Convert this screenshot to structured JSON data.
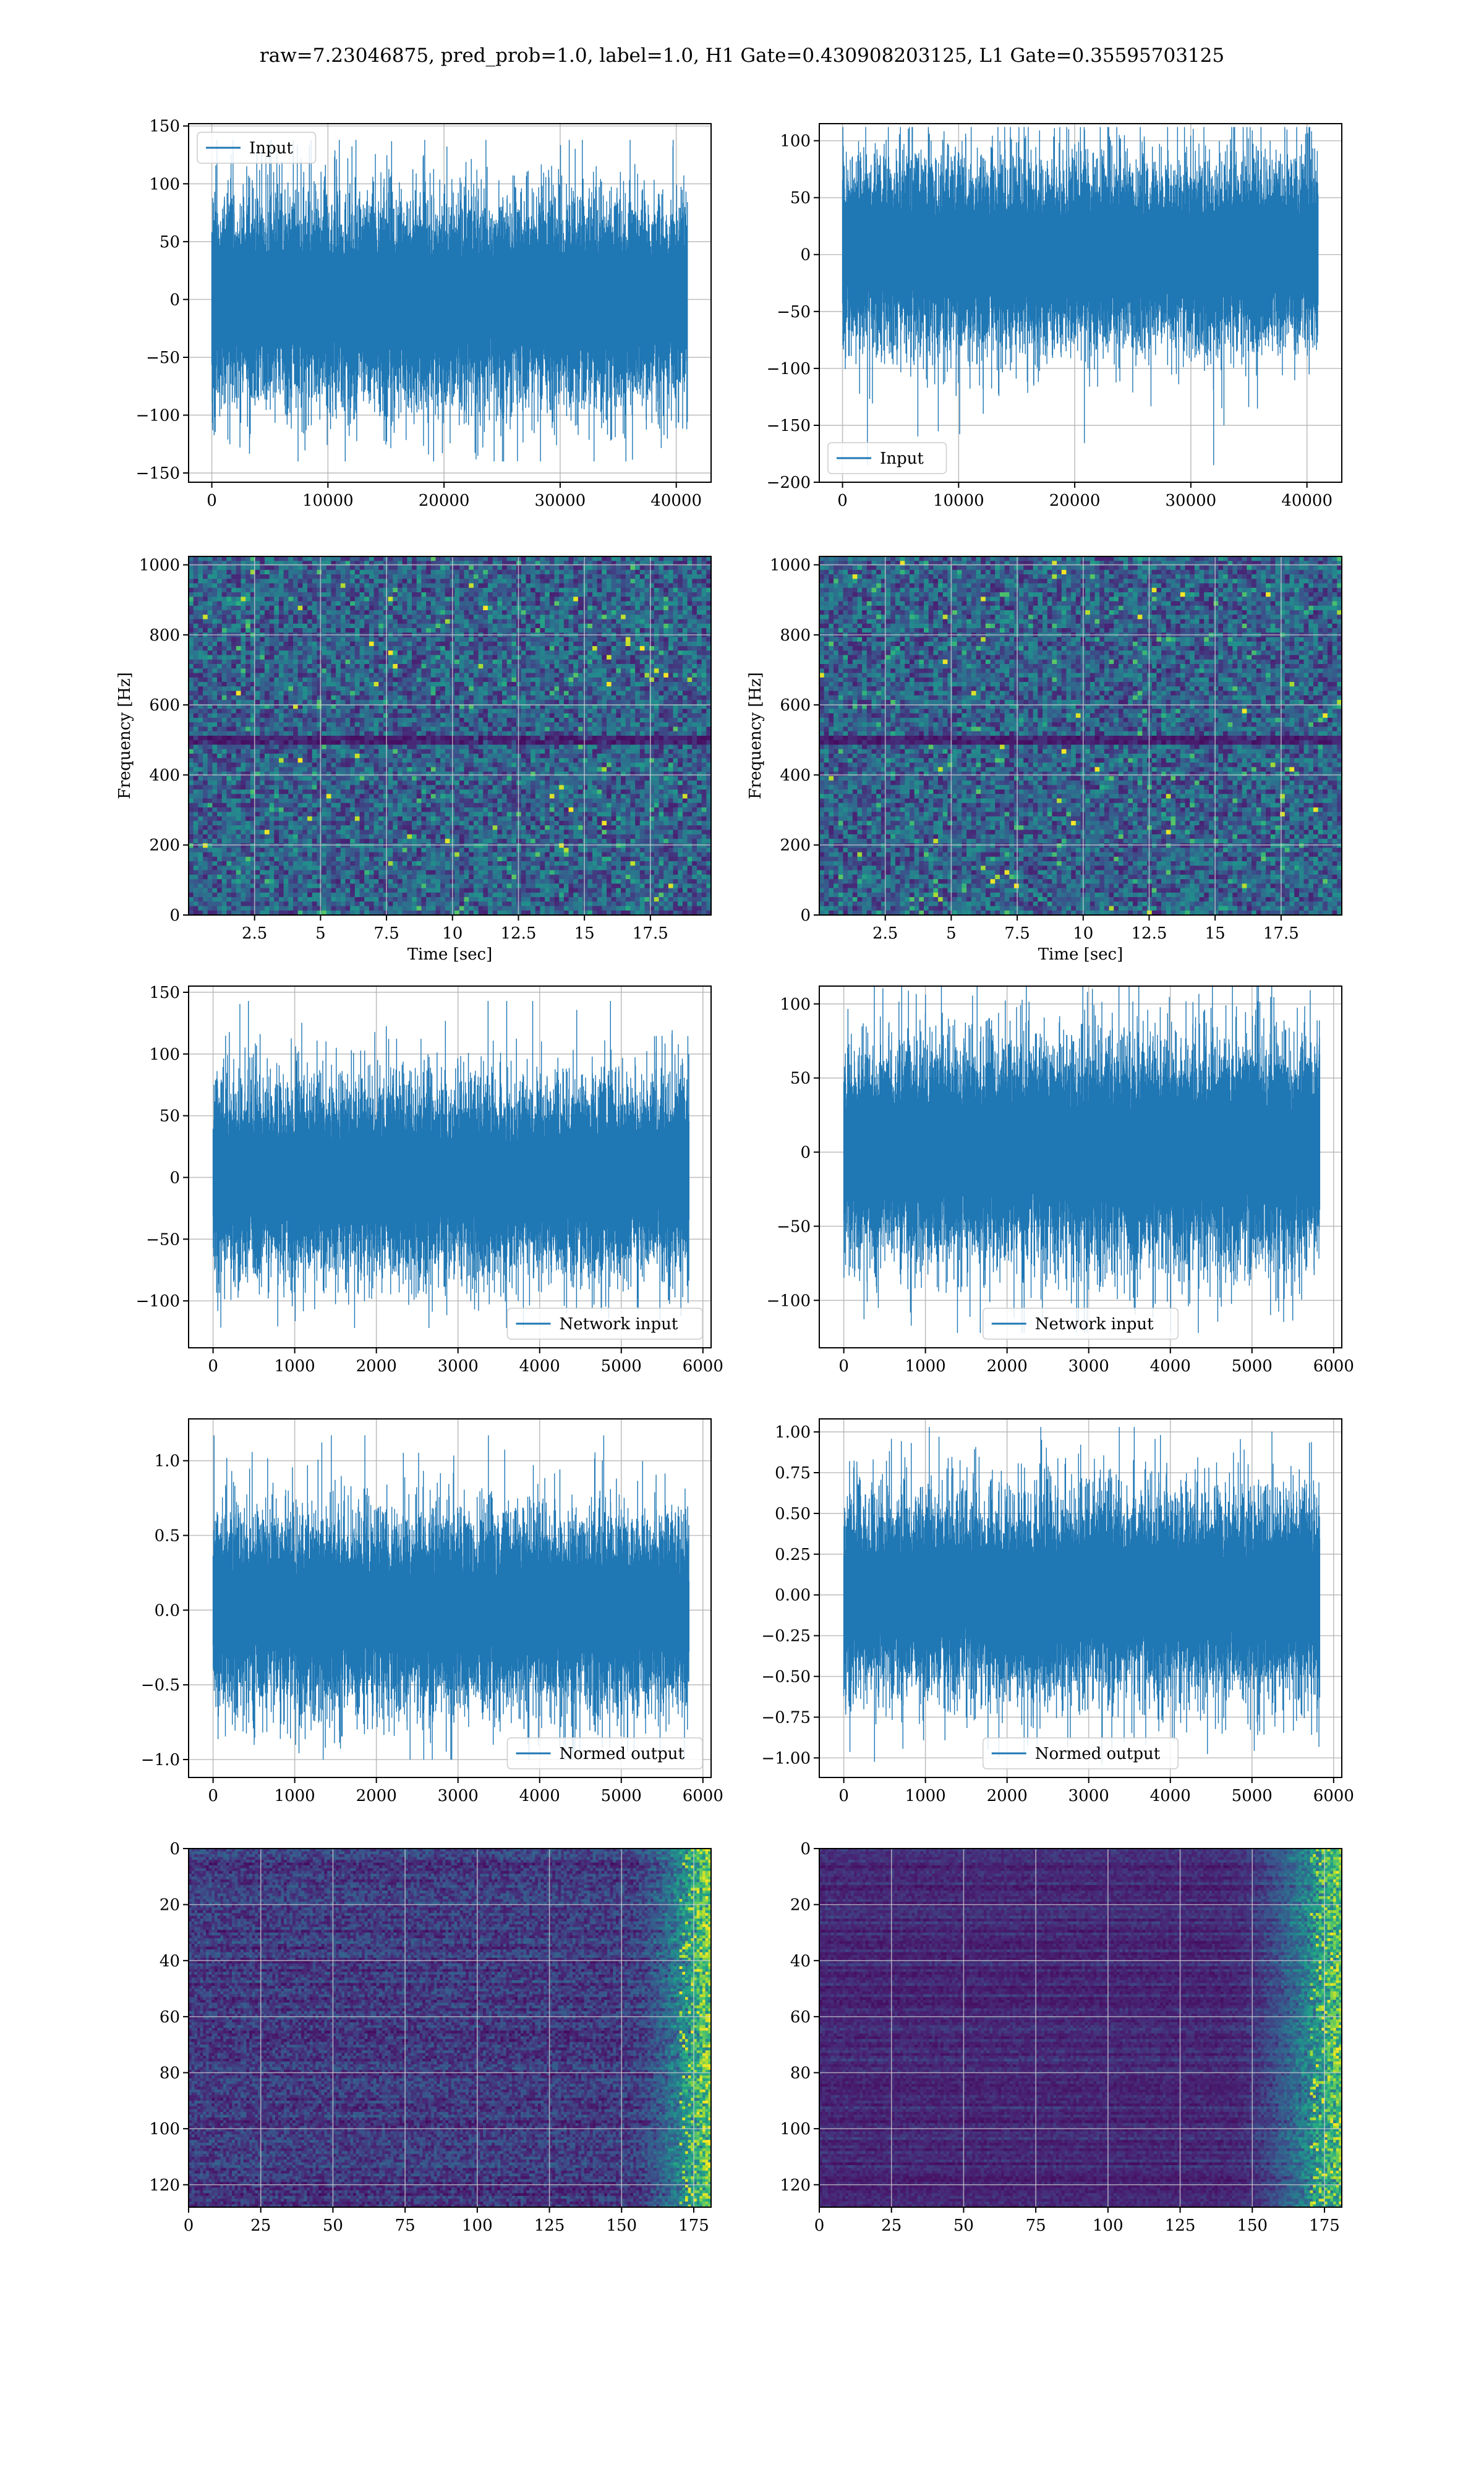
{
  "suptitle": "raw=7.23046875, pred_prob=1.0, label=1.0, H1 Gate=0.430908203125, L1 Gate=0.35595703125",
  "colors": {
    "series": "#1f77b4",
    "grid": "#b0b0b0",
    "axes": "#000000",
    "heat_low": "#440154",
    "heat_high": "#fde725"
  },
  "chart_data": [
    {
      "type": "line",
      "row": 1,
      "col": 1,
      "legend": "Input",
      "legend_loc": "upper-left",
      "xlim": [
        -2000,
        43000
      ],
      "ylim": [
        -158,
        152
      ],
      "xticks": [
        0,
        10000,
        20000,
        30000,
        40000
      ],
      "yticks": [
        -150,
        -100,
        -50,
        0,
        50,
        100,
        150
      ],
      "x_start": 0,
      "x_end": 40960,
      "typical_amp": 48,
      "peaks": [
        -140,
        138
      ]
    },
    {
      "type": "line",
      "row": 1,
      "col": 2,
      "legend": "Input",
      "legend_loc": "lower-left",
      "xlim": [
        -2000,
        43000
      ],
      "ylim": [
        -200,
        115
      ],
      "xticks": [
        0,
        10000,
        20000,
        30000,
        40000
      ],
      "yticks": [
        -200,
        -150,
        -100,
        -50,
        0,
        50,
        100
      ],
      "x_start": 0,
      "x_end": 40960,
      "typical_amp": 45,
      "peaks": [
        -185,
        112
      ]
    },
    {
      "type": "heatmap",
      "row": 2,
      "col": 1,
      "xlabel": "Time [sec]",
      "ylabel": "Frequency [Hz]",
      "xlim": [
        0,
        19.8
      ],
      "ylim": [
        0,
        1024
      ],
      "xticks": [
        2.5,
        5.0,
        7.5,
        10.0,
        12.5,
        15.0,
        17.5
      ],
      "yticks": [
        0,
        200,
        400,
        600,
        800,
        1000
      ]
    },
    {
      "type": "heatmap",
      "row": 2,
      "col": 2,
      "xlabel": "Time [sec]",
      "ylabel": "Frequency [Hz]",
      "xlim": [
        0,
        19.8
      ],
      "ylim": [
        0,
        1024
      ],
      "xticks": [
        2.5,
        5.0,
        7.5,
        10.0,
        12.5,
        15.0,
        17.5
      ],
      "yticks": [
        0,
        200,
        400,
        600,
        800,
        1000
      ]
    },
    {
      "type": "line",
      "row": 3,
      "col": 1,
      "legend": "Network input",
      "legend_loc": "lower-right",
      "xlim": [
        -300,
        6100
      ],
      "ylim": [
        -138,
        155
      ],
      "xticks": [
        0,
        1000,
        2000,
        3000,
        4000,
        5000,
        6000
      ],
      "yticks": [
        -100,
        -50,
        0,
        50,
        100,
        150
      ],
      "x_start": 0,
      "x_end": 5830,
      "typical_amp": 42,
      "peaks": [
        -122,
        143
      ]
    },
    {
      "type": "line",
      "row": 3,
      "col": 2,
      "legend": "Network input",
      "legend_loc": "lower-center",
      "xlim": [
        -300,
        6100
      ],
      "ylim": [
        -132,
        112
      ],
      "xticks": [
        0,
        1000,
        2000,
        3000,
        4000,
        5000,
        6000
      ],
      "yticks": [
        -100,
        -50,
        0,
        50,
        100
      ],
      "x_start": 0,
      "x_end": 5830,
      "typical_amp": 40,
      "peaks": [
        -122,
        115
      ]
    },
    {
      "type": "line",
      "row": 4,
      "col": 1,
      "legend": "Normed output",
      "legend_loc": "lower-right",
      "xlim": [
        -300,
        6100
      ],
      "ylim": [
        -1.12,
        1.28
      ],
      "xticks": [
        0,
        1000,
        2000,
        3000,
        4000,
        5000,
        6000
      ],
      "yticks": [
        -1.0,
        -0.5,
        0.0,
        0.5,
        1.0
      ],
      "ytick_labels": [
        "−1.0",
        "−0.5",
        "0.0",
        "0.5",
        "1.0"
      ],
      "x_start": 0,
      "x_end": 5830,
      "typical_amp": 0.34,
      "peaks": [
        -1.0,
        1.17
      ]
    },
    {
      "type": "line",
      "row": 4,
      "col": 2,
      "legend": "Normed output",
      "legend_loc": "lower-center",
      "xlim": [
        -300,
        6100
      ],
      "ylim": [
        -1.12,
        1.08
      ],
      "xticks": [
        0,
        1000,
        2000,
        3000,
        4000,
        5000,
        6000
      ],
      "yticks": [
        -1.0,
        -0.75,
        -0.5,
        -0.25,
        0.0,
        0.25,
        0.5,
        0.75,
        1.0
      ],
      "ytick_labels": [
        "−1.00",
        "−0.75",
        "−0.50",
        "−0.25",
        "0.00",
        "0.25",
        "0.50",
        "0.75",
        "1.00"
      ],
      "x_start": 0,
      "x_end": 5830,
      "typical_amp": 0.33,
      "peaks": [
        -1.04,
        1.03
      ]
    },
    {
      "type": "heatmap",
      "row": 5,
      "col": 1,
      "xlim": [
        0,
        181
      ],
      "ylim": [
        128,
        0
      ],
      "xticks": [
        0,
        25,
        50,
        75,
        100,
        125,
        150,
        175
      ],
      "yticks": [
        0,
        20,
        40,
        60,
        80,
        100,
        120
      ],
      "hot_column_from": 150
    },
    {
      "type": "heatmap",
      "row": 5,
      "col": 2,
      "xlim": [
        0,
        181
      ],
      "ylim": [
        128,
        0
      ],
      "xticks": [
        0,
        25,
        50,
        75,
        100,
        125,
        150,
        175
      ],
      "yticks": [
        0,
        20,
        40,
        60,
        80,
        100,
        120
      ],
      "hot_column_from": 140
    }
  ]
}
